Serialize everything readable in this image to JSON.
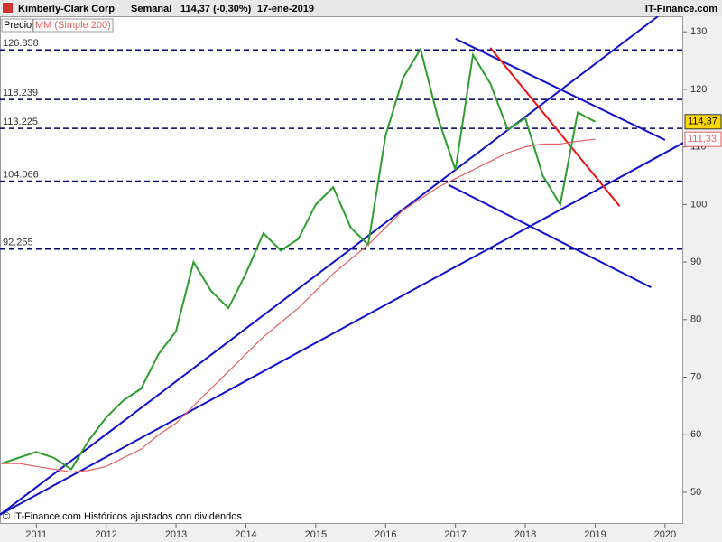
{
  "chart_data": {
    "type": "line",
    "title": "Kimberly-Clark Corp",
    "period": "Semanal",
    "quote": "114,37 (-0,30%)",
    "date": "17-ene-2019",
    "source": "IT-Finance.com",
    "footer": "© IT-Finance.com  Históricos ajustados con dividendos",
    "x": [
      2010.5,
      2010.75,
      2011.0,
      2011.25,
      2011.5,
      2011.75,
      2012.0,
      2012.25,
      2012.5,
      2012.75,
      2013.0,
      2013.25,
      2013.5,
      2013.75,
      2014.0,
      2014.25,
      2014.5,
      2014.75,
      2015.0,
      2015.25,
      2015.5,
      2015.75,
      2016.0,
      2016.25,
      2016.5,
      2016.75,
      2017.0,
      2017.25,
      2017.5,
      2017.75,
      2018.0,
      2018.25,
      2018.5,
      2018.75,
      2019.0
    ],
    "series": [
      {
        "name": "Precio",
        "color": "#2e9e2e",
        "values": [
          55,
          56,
          57,
          56,
          54,
          59,
          63,
          66,
          68,
          74,
          78,
          90,
          85,
          82,
          88,
          95,
          92,
          94,
          100,
          103,
          96,
          93,
          112,
          122,
          127,
          115,
          106,
          126,
          121,
          113,
          115,
          105,
          100,
          116,
          114.37
        ],
        "last_label": {
          "value": 114.37,
          "label": "114,37"
        }
      },
      {
        "name": "MM (Simple 200)",
        "color": "#e06060",
        "values": [
          55,
          55,
          54.5,
          54,
          53.5,
          53.8,
          54.5,
          56,
          57.5,
          60,
          62,
          65,
          68,
          71,
          74,
          77,
          79.5,
          82,
          85,
          88,
          90.5,
          93,
          96,
          99,
          101,
          103,
          104.5,
          106,
          107.5,
          109,
          110,
          110.5,
          110.5,
          111,
          111.33
        ],
        "last_label": {
          "value": 111.33,
          "label": "111,33"
        }
      }
    ],
    "levels": [
      126.858,
      118.239,
      113.225,
      104.066,
      92.255
    ],
    "trendlines": [
      {
        "color": "#1010cc",
        "x": [
          2010.48,
          2019.9
        ],
        "y": [
          46.1,
          132.7
        ]
      },
      {
        "color": "#1010cc",
        "x": [
          2010.48,
          2020.26
        ],
        "y": [
          46.1,
          110.7
        ]
      },
      {
        "color": "#1010cc",
        "x": [
          2017.0,
          2020.0
        ],
        "y": [
          128.8,
          111.2
        ]
      },
      {
        "color": "#1010cc",
        "x": [
          2016.9,
          2019.8
        ],
        "y": [
          103.4,
          85.6
        ]
      },
      {
        "color": "#ee1111",
        "x": [
          2017.5,
          2019.35
        ],
        "y": [
          127.2,
          99.7
        ]
      }
    ],
    "xlim": [
      2010.48,
      2020.26
    ],
    "ylim": [
      44.5,
      132.7
    ],
    "xticks": [
      2011,
      2012,
      2013,
      2014,
      2015,
      2016,
      2017,
      2018,
      2019,
      2020
    ],
    "yticks": [
      50,
      60,
      70,
      80,
      90,
      100,
      110,
      120,
      130
    ]
  }
}
